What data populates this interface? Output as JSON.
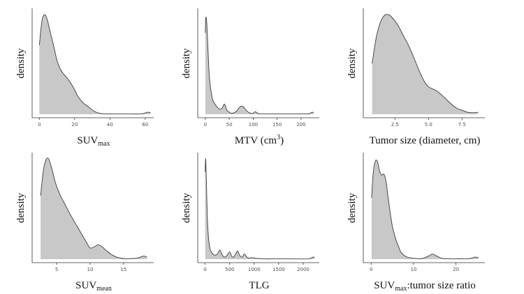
{
  "colors": {
    "fill": "#c8c8c8",
    "stroke": "#3a3a3a",
    "axis": "#333333"
  },
  "chart_data": [
    {
      "type": "area",
      "title": "",
      "xlabel": "SUVmax",
      "xlabel_main": "SUV",
      "xlabel_sub": "max",
      "xlabel_tail": "",
      "ylabel": "density",
      "xlim": [
        -2.5,
        64
      ],
      "ylim": [
        0,
        1
      ],
      "x_ticks": [
        0,
        20,
        40,
        60
      ],
      "x_tick_labels": [
        "0",
        "20",
        "40",
        "60"
      ],
      "x": [
        0,
        1.5,
        3,
        4.5,
        6,
        8,
        10,
        12,
        14,
        16,
        18,
        20,
        22,
        25,
        28,
        31,
        34,
        37,
        42,
        50,
        58,
        61,
        63
      ],
      "y": [
        0.68,
        0.92,
        0.98,
        0.93,
        0.82,
        0.68,
        0.53,
        0.44,
        0.39,
        0.35,
        0.3,
        0.24,
        0.17,
        0.11,
        0.07,
        0.03,
        0.01,
        0.004,
        0.003,
        0.003,
        0.004,
        0.02,
        0.015
      ]
    },
    {
      "type": "area",
      "title": "",
      "xlabel": "MTV (cm3)",
      "xlabel_main": "MTV (cm",
      "xlabel_sup": "3",
      "xlabel_tail": ")",
      "ylabel": "density",
      "xlim": [
        -10,
        235
      ],
      "ylim": [
        0,
        1
      ],
      "x_ticks": [
        0,
        50,
        100,
        150,
        200
      ],
      "x_tick_labels": [
        "0",
        "50",
        "100",
        "150",
        "200"
      ],
      "x": [
        0,
        1,
        3,
        5,
        8,
        11,
        15,
        20,
        25,
        30,
        35,
        40,
        45,
        50,
        55,
        60,
        65,
        70,
        75,
        80,
        85,
        90,
        95,
        100,
        104,
        110,
        120,
        140,
        160,
        180,
        200,
        215,
        223,
        226
      ],
      "y": [
        0.8,
        0.95,
        0.9,
        0.7,
        0.4,
        0.26,
        0.15,
        0.1,
        0.07,
        0.05,
        0.06,
        0.1,
        0.04,
        0.02,
        0.01,
        0.015,
        0.03,
        0.06,
        0.08,
        0.07,
        0.04,
        0.02,
        0.01,
        0.01,
        0.025,
        0.008,
        0.003,
        0.003,
        0.003,
        0.003,
        0.003,
        0.004,
        0.02,
        0.015
      ]
    },
    {
      "type": "area",
      "title": "",
      "xlabel": "Tumor size (diameter, cm)",
      "xlabel_main": "Tumor size (diameter, cm)",
      "xlabel_tail": "",
      "ylabel": "density",
      "xlim": [
        0.35,
        9.1
      ],
      "ylim": [
        0,
        1
      ],
      "x_ticks": [
        2.5,
        5.0,
        7.5
      ],
      "x_tick_labels": [
        "2.5",
        "5.0",
        "7.5"
      ],
      "x": [
        0.8,
        1.1,
        1.4,
        1.7,
        2.0,
        2.3,
        2.7,
        3.1,
        3.5,
        3.9,
        4.3,
        4.7,
        5.0,
        5.3,
        5.6,
        5.9,
        6.3,
        6.7,
        7.1,
        7.5,
        7.9,
        8.3,
        8.7
      ],
      "y": [
        0.5,
        0.75,
        0.9,
        0.97,
        0.98,
        0.95,
        0.88,
        0.78,
        0.68,
        0.56,
        0.43,
        0.32,
        0.27,
        0.25,
        0.23,
        0.2,
        0.15,
        0.1,
        0.06,
        0.04,
        0.02,
        0.015,
        0.02
      ]
    },
    {
      "type": "area",
      "title": "",
      "xlabel": "SUVmean",
      "xlabel_main": "SUV",
      "xlabel_sub": "mean",
      "xlabel_tail": "",
      "ylabel": "density",
      "xlim": [
        1.75,
        19.3
      ],
      "ylim": [
        0,
        1
      ],
      "x_ticks": [
        5,
        10,
        15
      ],
      "x_tick_labels": [
        "5",
        "10",
        "15"
      ],
      "x": [
        2.6,
        3.0,
        3.4,
        3.8,
        4.3,
        4.8,
        5.5,
        6.2,
        7.0,
        7.8,
        8.6,
        9.4,
        10.0,
        10.6,
        11.2,
        11.8,
        12.5,
        13.2,
        14.0,
        15.0,
        16.0,
        17.0,
        18.0,
        18.5
      ],
      "y": [
        0.62,
        0.86,
        0.97,
        0.98,
        0.88,
        0.75,
        0.63,
        0.54,
        0.44,
        0.35,
        0.26,
        0.17,
        0.11,
        0.12,
        0.14,
        0.12,
        0.08,
        0.045,
        0.02,
        0.006,
        0.006,
        0.01,
        0.03,
        0.02
      ]
    },
    {
      "type": "area",
      "title": "",
      "xlabel": "TLG",
      "xlabel_main": "TLG",
      "xlabel_tail": "",
      "ylabel": "density",
      "xlim": [
        -95,
        2300
      ],
      "ylim": [
        0,
        1
      ],
      "x_ticks": [
        0,
        500,
        1000,
        1500,
        2000
      ],
      "x_tick_labels": [
        "0",
        "500",
        "1000",
        "1500",
        "2000"
      ],
      "x": [
        0,
        10,
        25,
        45,
        70,
        100,
        140,
        190,
        250,
        300,
        350,
        400,
        450,
        500,
        540,
        580,
        620,
        660,
        700,
        750,
        800,
        850,
        900,
        950,
        1000,
        1200,
        1500,
        1800,
        2100,
        2200,
        2230
      ],
      "y": [
        0.85,
        0.98,
        0.75,
        0.4,
        0.2,
        0.1,
        0.06,
        0.04,
        0.05,
        0.09,
        0.04,
        0.02,
        0.04,
        0.07,
        0.03,
        0.02,
        0.05,
        0.08,
        0.04,
        0.02,
        0.05,
        0.02,
        0.01,
        0.015,
        0.01,
        0.003,
        0.003,
        0.003,
        0.003,
        0.02,
        0.015
      ]
    },
    {
      "type": "area",
      "title": "",
      "xlabel": "SUVmax:tumor size ratio",
      "xlabel_main": "SUV",
      "xlabel_sub": "max",
      "xlabel_tail": ":tumor size ratio",
      "ylabel": "density",
      "xlim": [
        -1.2,
        26.5
      ],
      "ylim": [
        0,
        1
      ],
      "x_ticks": [
        0,
        10,
        20
      ],
      "x_tick_labels": [
        "0",
        "10",
        "20"
      ],
      "x": [
        0.1,
        0.5,
        1.0,
        1.5,
        2.0,
        2.5,
        3.0,
        3.5,
        4.0,
        4.5,
        5.0,
        5.5,
        6.0,
        6.5,
        7.0,
        8.0,
        9.0,
        10.0,
        12.0,
        13.5,
        14.5,
        15.5,
        17.0,
        20.0,
        23.0,
        24.5,
        25.3
      ],
      "y": [
        0.6,
        0.85,
        0.96,
        0.95,
        0.86,
        0.82,
        0.83,
        0.76,
        0.6,
        0.45,
        0.32,
        0.24,
        0.17,
        0.12,
        0.07,
        0.03,
        0.015,
        0.008,
        0.006,
        0.03,
        0.05,
        0.03,
        0.006,
        0.004,
        0.004,
        0.02,
        0.015
      ]
    }
  ]
}
